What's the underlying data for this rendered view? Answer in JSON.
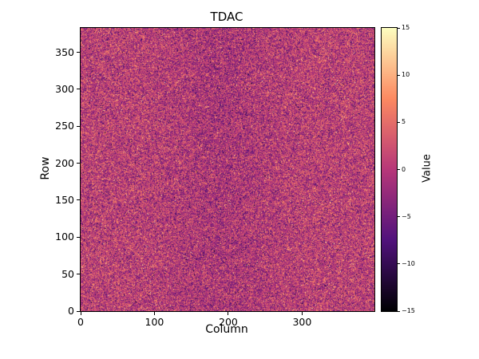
{
  "chart_data": {
    "type": "heatmap",
    "title": "TDAC",
    "xlabel": "Column",
    "ylabel": "Row",
    "colorbar_label": "Value",
    "x_range": [
      0,
      398
    ],
    "y_range": [
      0,
      383
    ],
    "value_range": [
      -15,
      15
    ],
    "x_ticks": [
      0,
      100,
      200,
      300
    ],
    "y_ticks": [
      0,
      50,
      100,
      150,
      200,
      250,
      300,
      350
    ],
    "colorbar_ticks": [
      15,
      10,
      5,
      0,
      -5,
      -10,
      -15
    ],
    "colormap": "magma",
    "colormap_stops": [
      {
        "t": 0.0,
        "color": "#000004"
      },
      {
        "t": 0.25,
        "color": "#51127c"
      },
      {
        "t": 0.5,
        "color": "#b73779"
      },
      {
        "t": 0.75,
        "color": "#fc8961"
      },
      {
        "t": 1.0,
        "color": "#fcfdbf"
      }
    ],
    "noise": {
      "description": "Per-pixel random TDAC trim values; dense speckle noise centered near 0 on a magenta base with orange/cream bright speckles and dark purple speckles, plus a subtly darker vertical band near column 190",
      "mean": 0.6,
      "std": 4.0,
      "seed": 42,
      "band": {
        "center_col": 190,
        "sigma_col": 48,
        "amplitude": -1.3
      }
    },
    "axis_colors": {
      "spine": "#000000",
      "background": "#ffffff"
    }
  }
}
